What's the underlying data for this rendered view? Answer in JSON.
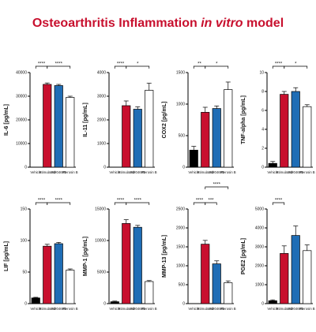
{
  "title_parts": [
    "Osteoarthritis Inflammation ",
    "in vitro",
    " model"
  ],
  "chart_data": [
    {
      "type": "bar",
      "y_label": "IL-6 [pg/mL]",
      "categories": [
        "Vehicle",
        "Stimulated",
        "SM04690",
        "Pterosin B"
      ],
      "values": [
        0,
        35000,
        34500,
        29500
      ],
      "errors": [
        0,
        600,
        500,
        500
      ],
      "colors": [
        "#000000",
        "#c8102e",
        "#1f6db5",
        "#ffffff"
      ],
      "ylim": [
        0,
        40000
      ],
      "yticks": [
        0,
        10000,
        20000,
        30000,
        40000
      ],
      "annotations": [
        {
          "text": "****",
          "from": 0,
          "to": 1,
          "level": 0
        },
        {
          "text": "****",
          "from": 1,
          "to": 3,
          "level": 0
        }
      ]
    },
    {
      "type": "bar",
      "y_label": "IL-11 [pg/mL]",
      "categories": [
        "Vehicle",
        "Stimulated",
        "SM04690",
        "Pterosin B"
      ],
      "values": [
        0,
        2600,
        2450,
        3250
      ],
      "errors": [
        0,
        200,
        100,
        300
      ],
      "colors": [
        "#000000",
        "#c8102e",
        "#1f6db5",
        "#ffffff"
      ],
      "ylim": [
        0,
        4000
      ],
      "yticks": [
        0,
        1000,
        2000,
        3000,
        4000
      ],
      "annotations": [
        {
          "text": "****",
          "from": 0,
          "to": 1,
          "level": 0
        },
        {
          "text": "*",
          "from": 1,
          "to": 3,
          "level": 0
        }
      ]
    },
    {
      "type": "bar",
      "y_label": "COX2 [pg/mL]",
      "categories": [
        "Vehicle",
        "Stimulated",
        "SM04690",
        "Pterosin B"
      ],
      "values": [
        270,
        870,
        930,
        1230
      ],
      "errors": [
        60,
        80,
        40,
        120
      ],
      "colors": [
        "#000000",
        "#c8102e",
        "#1f6db5",
        "#ffffff"
      ],
      "ylim": [
        0,
        1500
      ],
      "yticks": [
        0,
        500,
        1000,
        1500
      ],
      "annotations": [
        {
          "text": "**",
          "from": 0,
          "to": 1,
          "level": 0
        },
        {
          "text": "*",
          "from": 1,
          "to": 3,
          "level": 0
        }
      ]
    },
    {
      "type": "bar",
      "y_label": "TNF-alpha [pg/mL]",
      "categories": [
        "Vehicle",
        "Stimulated",
        "SM04690",
        "Pterosin B"
      ],
      "values": [
        0.4,
        7.7,
        8.0,
        6.4
      ],
      "errors": [
        0.2,
        0.3,
        0.4,
        0.2
      ],
      "colors": [
        "#000000",
        "#c8102e",
        "#1f6db5",
        "#ffffff"
      ],
      "ylim": [
        0,
        10
      ],
      "yticks": [
        0,
        2,
        4,
        6,
        8,
        10
      ],
      "annotations": [
        {
          "text": "****",
          "from": 0,
          "to": 1,
          "level": 0
        },
        {
          "text": "*",
          "from": 1,
          "to": 3,
          "level": 0
        }
      ]
    },
    {
      "type": "bar",
      "y_label": "LIF [pg/mL]",
      "categories": [
        "Vehicle",
        "Stimulated",
        "SM04690",
        "Pterosin B"
      ],
      "values": [
        9,
        91,
        95,
        53
      ],
      "errors": [
        1,
        3,
        2,
        2
      ],
      "colors": [
        "#000000",
        "#c8102e",
        "#1f6db5",
        "#ffffff"
      ],
      "ylim": [
        0,
        150
      ],
      "yticks": [
        0,
        50,
        100,
        150
      ],
      "annotations": [
        {
          "text": "****",
          "from": 0,
          "to": 1,
          "level": 0
        },
        {
          "text": "****",
          "from": 1,
          "to": 3,
          "level": 0
        }
      ]
    },
    {
      "type": "bar",
      "y_label": "MMP-1 [pg/mL]",
      "categories": [
        "Vehicle",
        "Stimulated",
        "SM04690",
        "Pterosin B"
      ],
      "values": [
        300,
        12700,
        12100,
        3500
      ],
      "errors": [
        100,
        600,
        300,
        150
      ],
      "colors": [
        "#000000",
        "#c8102e",
        "#1f6db5",
        "#ffffff"
      ],
      "ylim": [
        0,
        15000
      ],
      "yticks": [
        0,
        5000,
        10000,
        15000
      ],
      "annotations": [
        {
          "text": "****",
          "from": 0,
          "to": 1,
          "level": 0
        },
        {
          "text": "****",
          "from": 1,
          "to": 3,
          "level": 0
        }
      ]
    },
    {
      "type": "bar",
      "y_label": "MMP-13 [pg/mL]",
      "categories": [
        "Vehicle",
        "Stimulated",
        "SM04690",
        "Pterosin B"
      ],
      "values": [
        0,
        1570,
        1050,
        550
      ],
      "errors": [
        0,
        100,
        80,
        50
      ],
      "colors": [
        "#000000",
        "#c8102e",
        "#1f6db5",
        "#ffffff"
      ],
      "ylim": [
        0,
        2500
      ],
      "yticks": [
        0,
        500,
        1000,
        1500,
        2000,
        2500
      ],
      "annotations": [
        {
          "text": "****",
          "from": 0,
          "to": 1,
          "level": 0
        },
        {
          "text": "***",
          "from": 1,
          "to": 2,
          "level": 0
        },
        {
          "text": "****",
          "from": 1,
          "to": 3,
          "level": 2
        }
      ]
    },
    {
      "type": "bar",
      "y_label": "PGE2 [pg/mL]",
      "categories": [
        "Vehicle",
        "Stimulated",
        "SM04690",
        "Pterosin B"
      ],
      "values": [
        150,
        2650,
        3600,
        2800
      ],
      "errors": [
        50,
        400,
        500,
        300
      ],
      "colors": [
        "#000000",
        "#c8102e",
        "#1f6db5",
        "#ffffff"
      ],
      "ylim": [
        0,
        5000
      ],
      "yticks": [
        0,
        1000,
        2000,
        3000,
        4000,
        5000
      ],
      "annotations": [
        {
          "text": "****",
          "from": 0,
          "to": 1,
          "level": 0
        }
      ]
    }
  ]
}
